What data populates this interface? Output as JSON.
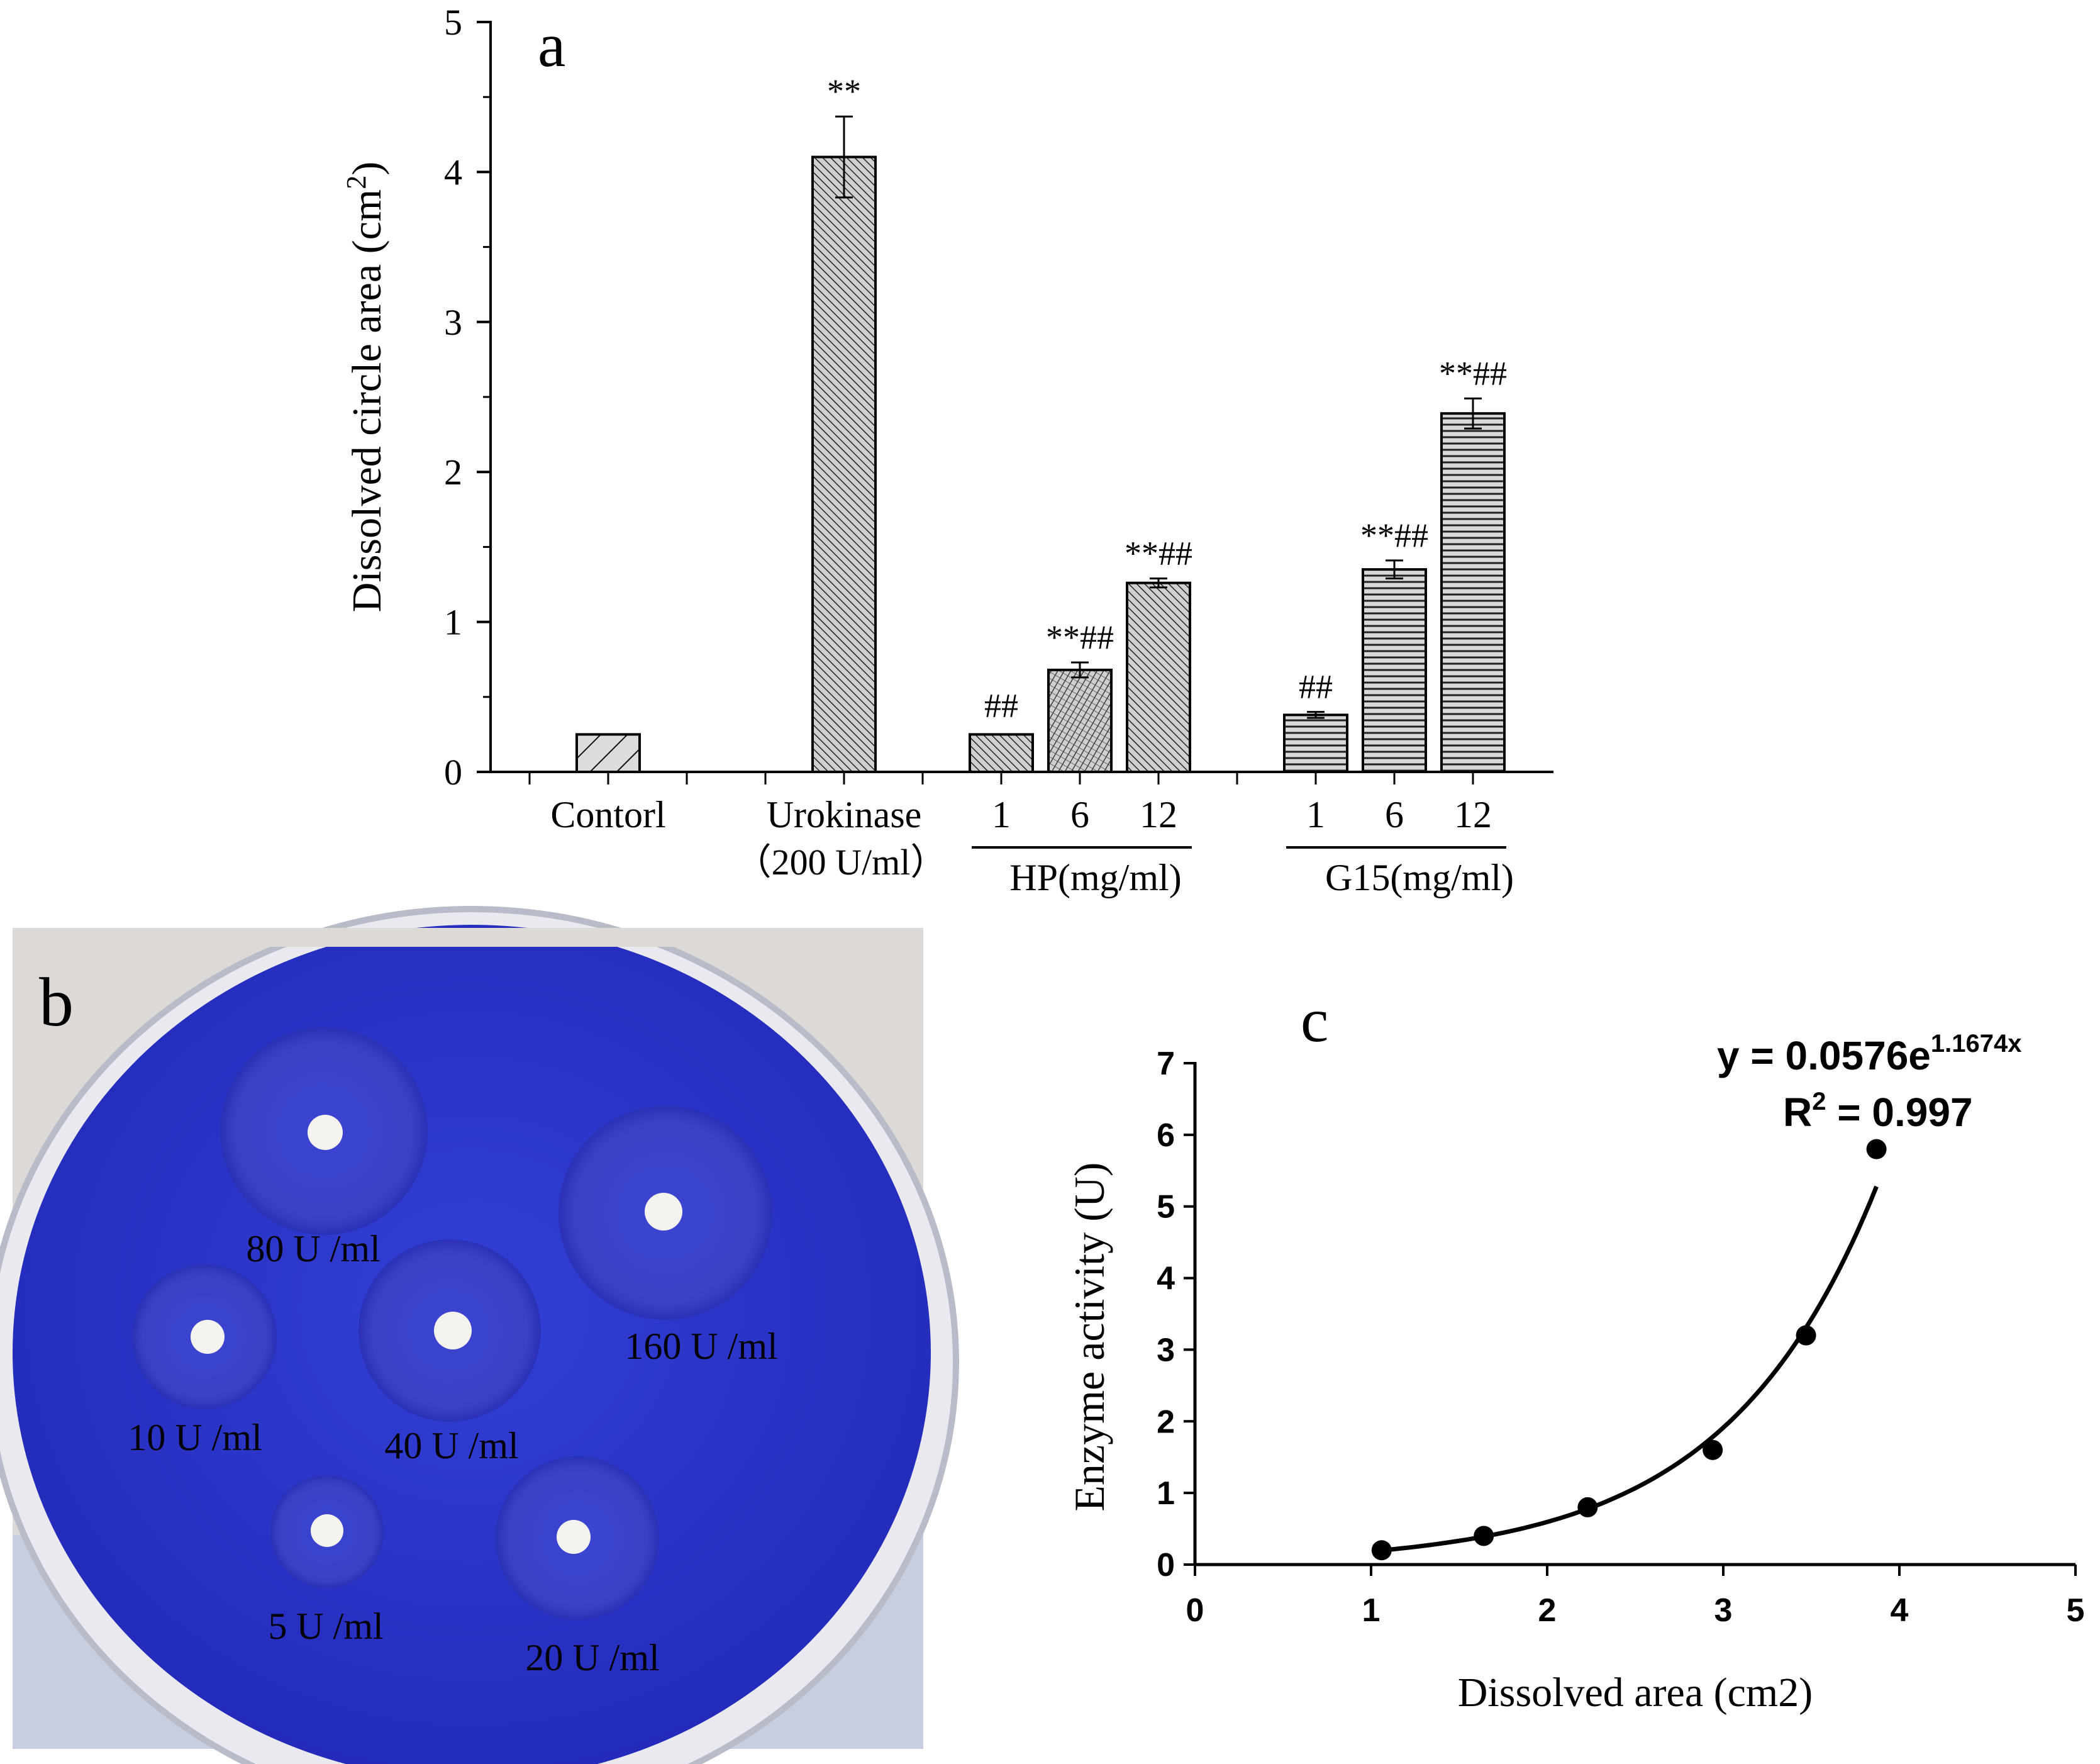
{
  "panel_letters": {
    "a": "a",
    "b": "b",
    "c": "c"
  },
  "chart_data": [
    {
      "type": "bar",
      "panel": "a",
      "ylabel": "Dissolved circle area (cm",
      "ylabel_sup": "2",
      "ylabel_close": ")",
      "ylim": [
        0,
        5
      ],
      "yticks": [
        "0",
        "1",
        "2",
        "3",
        "4",
        "5"
      ],
      "bars": [
        {
          "label": "Contorl",
          "sublabel": "",
          "value": 0.25,
          "error": 0,
          "annotation": "",
          "pattern": "diag-sparse"
        },
        {
          "label": "Urokinase",
          "sublabel": "（200 U/ml）",
          "value": 4.1,
          "error": 0.27,
          "annotation": "**",
          "pattern": "diag-dense"
        },
        {
          "label": "1",
          "sublabel": "",
          "value": 0.25,
          "error": 0,
          "annotation": "##",
          "pattern": "diag-dense"
        },
        {
          "label": "6",
          "sublabel": "",
          "value": 0.68,
          "error": 0.05,
          "annotation": "**##",
          "pattern": "cross"
        },
        {
          "label": "12",
          "sublabel": "",
          "value": 1.26,
          "error": 0.03,
          "annotation": "**##",
          "pattern": "diag-dense"
        },
        {
          "label": "1",
          "sublabel": "",
          "value": 0.38,
          "error": 0.02,
          "annotation": "##",
          "pattern": "horiz"
        },
        {
          "label": "6",
          "sublabel": "",
          "value": 1.35,
          "error": 0.06,
          "annotation": "**##",
          "pattern": "horiz"
        },
        {
          "label": "12",
          "sublabel": "",
          "value": 2.39,
          "error": 0.1,
          "annotation": "**##",
          "pattern": "horiz"
        }
      ],
      "groups": [
        {
          "label": "HP(mg/ml)"
        },
        {
          "label": "G15(mg/ml)"
        }
      ]
    },
    {
      "type": "scatter",
      "panel": "c",
      "xlabel": "Dissolved area (cm2)",
      "ylabel": "Enzyme activity (U)",
      "xlim": [
        0,
        5
      ],
      "ylim": [
        0,
        7
      ],
      "xticks": [
        "0",
        "1",
        "2",
        "3",
        "4",
        "5"
      ],
      "yticks": [
        "0",
        "1",
        "2",
        "3",
        "4",
        "5",
        "6",
        "7"
      ],
      "points": [
        {
          "x": 1.06,
          "y": 0.2
        },
        {
          "x": 1.64,
          "y": 0.4
        },
        {
          "x": 2.23,
          "y": 0.8
        },
        {
          "x": 2.94,
          "y": 1.6
        },
        {
          "x": 3.47,
          "y": 3.2
        },
        {
          "x": 3.87,
          "y": 5.8
        }
      ],
      "fit": {
        "type": "exponential",
        "a": 0.0576,
        "b": 1.1674,
        "x_from": 1.06,
        "x_to": 3.87
      },
      "equation": {
        "prefix": "y = 0.0576e",
        "exponent": "1.1674x"
      },
      "r2": {
        "prefix": "R",
        "sup": "2",
        "suffix": " = 0.997"
      }
    }
  ],
  "photo": {
    "labels": [
      "80 U /ml",
      "160 U /ml",
      "10 U /ml",
      "40 U /ml",
      "5 U /ml",
      "20 U /ml"
    ],
    "dish_color": "#2a33c8"
  },
  "colors": {
    "bar_fill": "#d9d9d9",
    "axis": "#000000",
    "point": "#000000"
  }
}
